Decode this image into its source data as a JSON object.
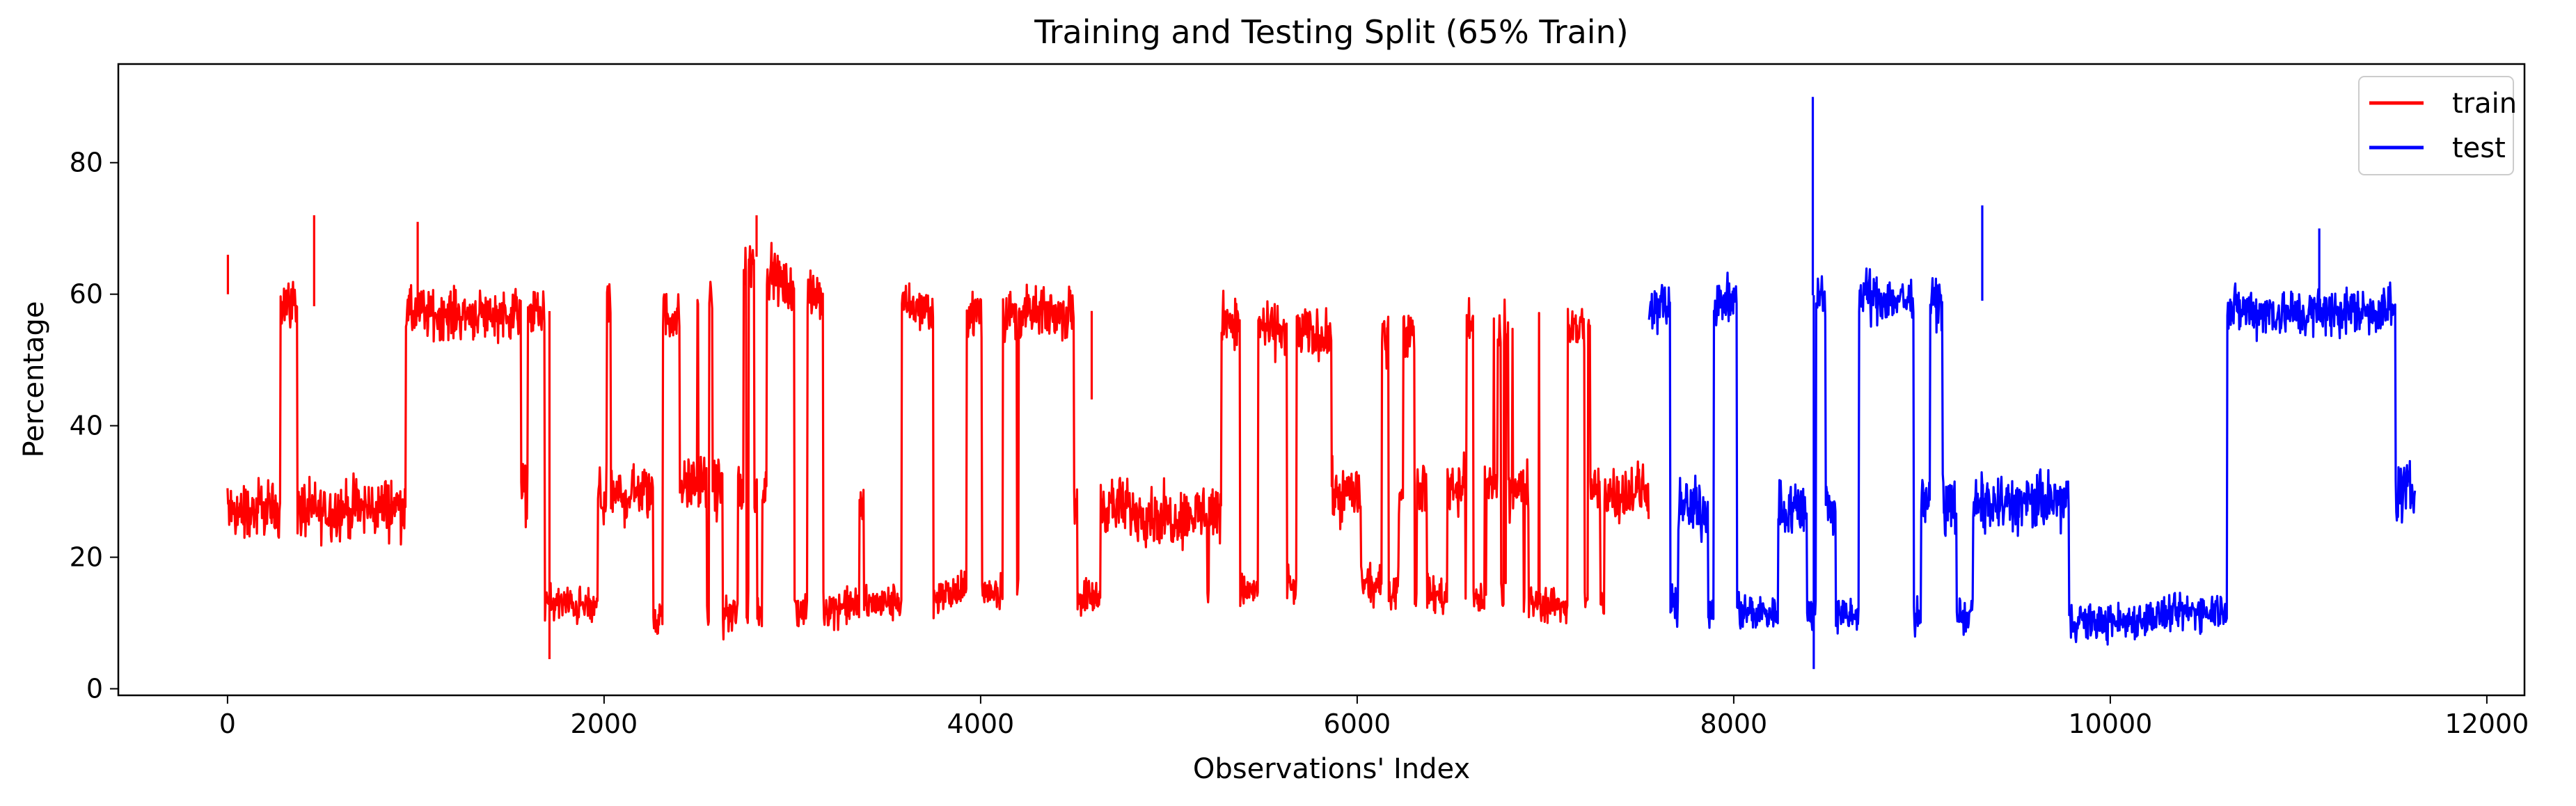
{
  "colors": {
    "train": "#ff0000",
    "test": "#0000ff",
    "axes": "#000000",
    "background": "#ffffff"
  },
  "chart_data": {
    "type": "line",
    "title": "Training and Testing Split (65% Train)",
    "xlabel": "Observations' Index",
    "ylabel": "Percentage",
    "xlim": [
      -580,
      12200
    ],
    "ylim": [
      -1,
      95
    ],
    "xticks": [
      0,
      2000,
      4000,
      6000,
      8000,
      10000,
      12000
    ],
    "xtick_labels": [
      "0",
      "2000",
      "4000",
      "6000",
      "8000",
      "10000",
      "12000"
    ],
    "yticks": [
      0,
      20,
      40,
      60,
      80
    ],
    "ytick_labels": [
      "0",
      "20",
      "40",
      "60",
      "80"
    ],
    "grid": false,
    "legend": {
      "position": "top-right",
      "entries": [
        "train",
        "test"
      ]
    },
    "split_index": 7550,
    "n_observations": 11620,
    "series": [
      {
        "name": "train",
        "color": "#ff0000",
        "x_range": [
          0,
          7549
        ],
        "bands": [
          {
            "band": "upper",
            "x": [
              0,
              500,
              1000,
              1500,
              2000,
              2500,
              2800,
              3000,
              3500,
              4000,
              4500,
              4900,
              5500,
              6000,
              6500,
              7000,
              7549
            ],
            "y": [
              60,
              58,
              57,
              57,
              58,
              56,
              66,
              60,
              58,
              57,
              57,
              59,
              55,
              53,
              55,
              55,
              55
            ]
          },
          {
            "band": "middle",
            "x": [
              0,
              500,
              1000,
              1500,
              2000,
              2500,
              3000,
              3500,
              4000,
              4500,
              5000,
              5500,
              6000,
              6500,
              7000,
              7549
            ],
            "y": [
              27,
              27,
              28,
              30,
              29,
              31,
              29,
              28,
              28,
              29,
              26,
              28,
              30,
              31,
              30,
              30
            ]
          },
          {
            "band": "lower",
            "x": [
              0,
              500,
              1000,
              1500,
              2000,
              2500,
              3000,
              3500,
              4000,
              4500,
              5000,
              5500,
              6000,
              6500,
              7000,
              7549
            ],
            "y": [
              13,
              14,
              14,
              14,
              12,
              11,
              12,
              13,
              15,
              14,
              14,
              15,
              16,
              14,
              13,
              12
            ]
          }
        ],
        "spikes": [
          {
            "x": 2,
            "y": 66
          },
          {
            "x": 460,
            "y": 72
          },
          {
            "x": 1010,
            "y": 71
          },
          {
            "x": 1710,
            "y": 4.5
          },
          {
            "x": 2810,
            "y": 72
          },
          {
            "x": 4590,
            "y": 44
          }
        ]
      },
      {
        "name": "test",
        "color": "#0000ff",
        "x_range": [
          7550,
          11620
        ],
        "bands": [
          {
            "band": "upper",
            "x": [
              7550,
              8000,
              8500,
              9000,
              9500,
              10000,
              10500,
              11000,
              11620
            ],
            "y": [
              58,
              59,
              60,
              59,
              59,
              58,
              58,
              57,
              58
            ]
          },
          {
            "band": "middle",
            "x": [
              7550,
              8000,
              8500,
              9000,
              9500,
              10000,
              10500,
              11000,
              11620
            ],
            "y": [
              28,
              27,
              28,
              28,
              28,
              29,
              30,
              29,
              30
            ]
          },
          {
            "band": "lower",
            "x": [
              7550,
              8000,
              8500,
              9000,
              9500,
              10000,
              10500,
              11000,
              11620
            ],
            "y": [
              13,
              12,
              11,
              11,
              11,
              10,
              12,
              13,
              11
            ]
          }
        ],
        "spikes": [
          {
            "x": 8420,
            "y": 90
          },
          {
            "x": 8425,
            "y": 3
          },
          {
            "x": 9320,
            "y": 73.5
          },
          {
            "x": 11110,
            "y": 70
          }
        ]
      }
    ]
  }
}
